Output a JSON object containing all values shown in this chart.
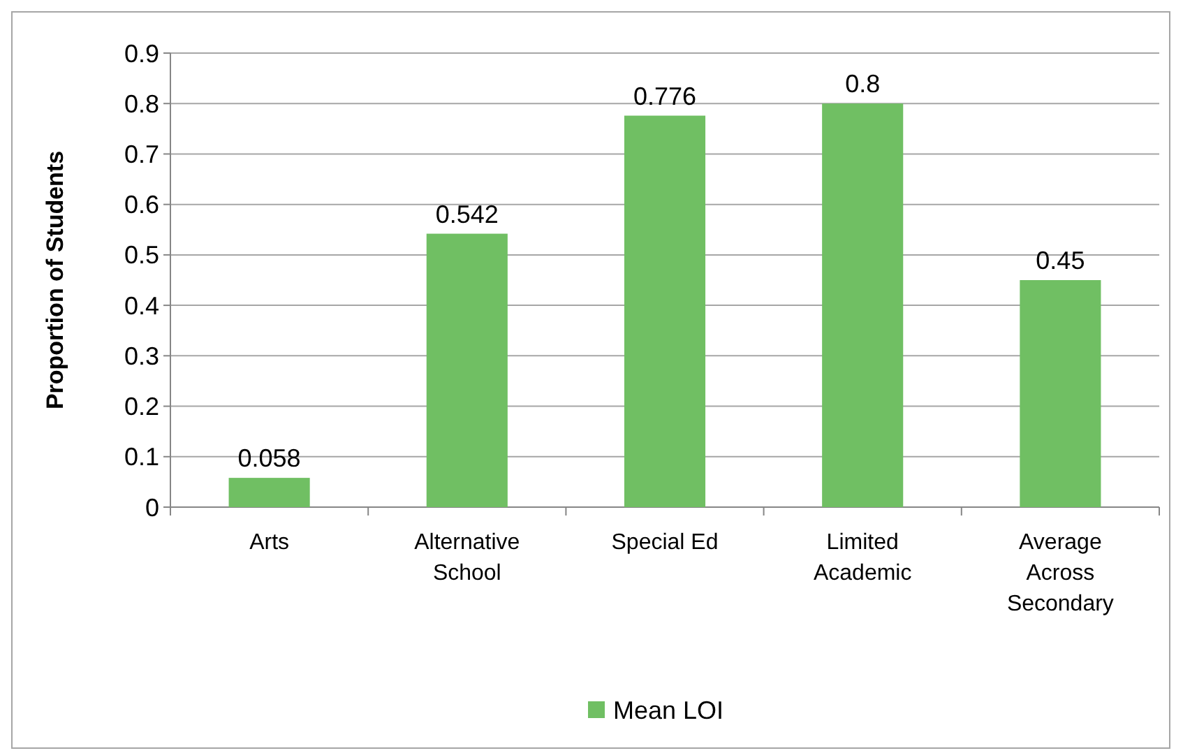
{
  "chart_data": {
    "type": "bar",
    "ylabel": "Proportion of Students",
    "categories": [
      "Arts",
      "Alternative School",
      "Special Ed",
      "Limited Academic",
      "Average Across Secondary"
    ],
    "series": [
      {
        "name": "Mean LOI",
        "color": "#70bf63",
        "values": [
          0.058,
          0.542,
          0.776,
          0.8,
          0.45
        ]
      }
    ],
    "ylim": [
      0,
      0.9
    ],
    "yticks": [
      0,
      0.1,
      0.2,
      0.3,
      0.4,
      0.5,
      0.6,
      0.7,
      0.8,
      0.9
    ],
    "grid": "y",
    "data_labels": true,
    "legend": "bottom"
  }
}
